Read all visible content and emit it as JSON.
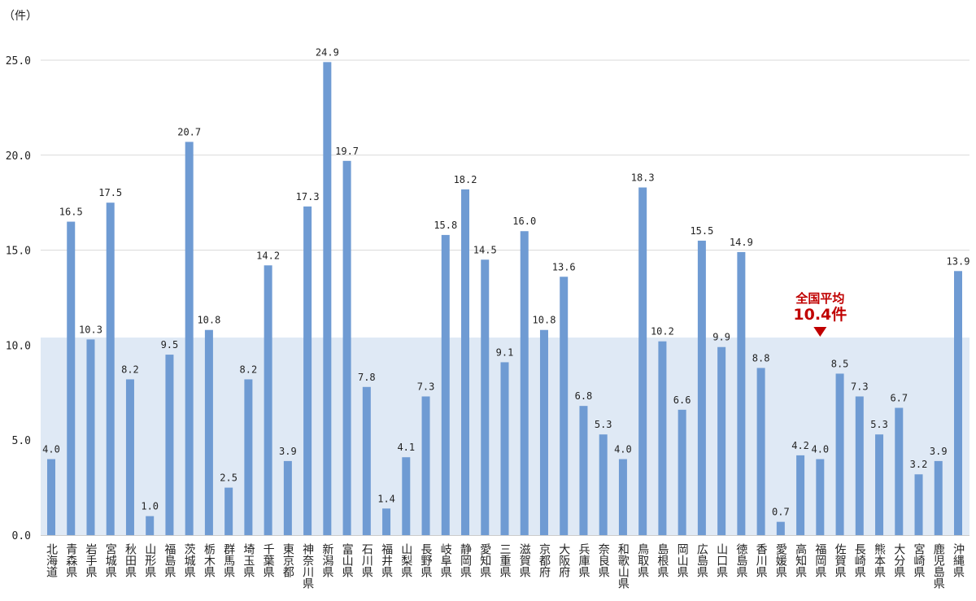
{
  "chart_data": {
    "type": "bar",
    "ylabel": "（件）",
    "ylim": [
      0,
      25
    ],
    "yticks": [
      "0.0",
      "5.0",
      "10.0",
      "15.0",
      "20.0",
      "25.0"
    ],
    "grid": true,
    "categories": [
      "北海道",
      "青森県",
      "岩手県",
      "宮城県",
      "秋田県",
      "山形県",
      "福島県",
      "茨城県",
      "栃木県",
      "群馬県",
      "埼玉県",
      "千葉県",
      "東京都",
      "神奈川県",
      "新潟県",
      "富山県",
      "石川県",
      "福井県",
      "山梨県",
      "長野県",
      "岐阜県",
      "静岡県",
      "愛知県",
      "三重県",
      "滋賀県",
      "京都府",
      "大阪府",
      "兵庫県",
      "奈良県",
      "和歌山県",
      "鳥取県",
      "島根県",
      "岡山県",
      "広島県",
      "山口県",
      "徳島県",
      "香川県",
      "愛媛県",
      "高知県",
      "福岡県",
      "佐賀県",
      "長崎県",
      "熊本県",
      "大分県",
      "宮崎県",
      "鹿児島県",
      "沖縄県"
    ],
    "values": [
      4.0,
      16.5,
      10.3,
      17.5,
      8.2,
      1.0,
      9.5,
      20.7,
      10.8,
      2.5,
      8.2,
      14.2,
      3.9,
      17.3,
      24.9,
      19.7,
      7.8,
      1.4,
      4.1,
      7.3,
      15.8,
      18.2,
      14.5,
      9.1,
      16.0,
      10.8,
      13.6,
      6.8,
      5.3,
      4.0,
      18.3,
      10.2,
      6.6,
      15.5,
      9.9,
      14.9,
      8.8,
      0.7,
      4.2,
      4.0,
      8.5,
      7.3,
      5.3,
      6.7,
      3.2,
      3.9,
      13.9
    ],
    "average": {
      "value": 10.4,
      "label_line1": "全国平均",
      "label_line2": "10.4件"
    },
    "colors": {
      "bar": "#6f9bd3",
      "band": "#dfe9f5",
      "grid": "#d9d9d9",
      "avg_text": "#c00000"
    }
  }
}
